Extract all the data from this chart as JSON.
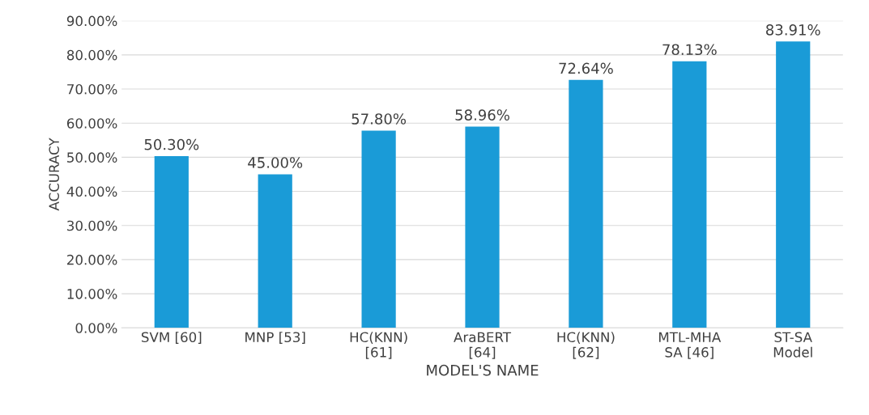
{
  "chart_data": {
    "type": "bar",
    "categories": [
      "SVM [60]",
      "MNP [53]",
      "HC(KNN)\n[61]",
      "AraBERT\n[64]",
      "HC(KNN)\n[62]",
      "MTL-MHA\nSA [46]",
      "ST-SA\nModel"
    ],
    "values": [
      50.3,
      45.0,
      57.8,
      58.96,
      72.64,
      78.13,
      83.91
    ],
    "value_labels": [
      "50.30%",
      "45.00%",
      "57.80%",
      "58.96%",
      "72.64%",
      "78.13%",
      "83.91%"
    ],
    "color": "#1a9bd7",
    "xlabel": "MODEL'S NAME",
    "ylabel": "ACCURACY",
    "ylim": [
      0,
      90
    ],
    "yticks": [
      {
        "value": 0,
        "label": "0.00%"
      },
      {
        "value": 10,
        "label": "10.00%"
      },
      {
        "value": 20,
        "label": "20.00%"
      },
      {
        "value": 30,
        "label": "30.00%"
      },
      {
        "value": 40,
        "label": "40.00%"
      },
      {
        "value": 50,
        "label": "50.00%"
      },
      {
        "value": 60,
        "label": "60.00%"
      },
      {
        "value": 70,
        "label": "70.00%"
      },
      {
        "value": 80,
        "label": "80.00%"
      },
      {
        "value": 90,
        "label": "90.00%"
      }
    ],
    "grid": "y",
    "legend": false
  }
}
